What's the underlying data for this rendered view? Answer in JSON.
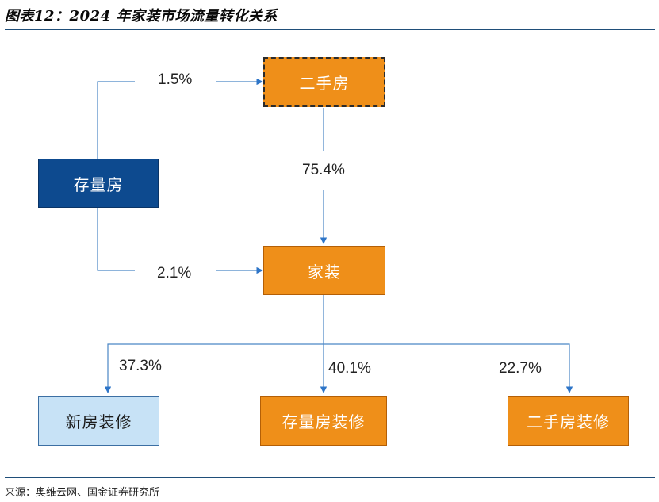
{
  "title": "图表12：2024 年家装市场流量转化关系",
  "source": "来源：奥维云网、国金证券研究所",
  "nodes": {
    "existing_home": "存量房",
    "second_hand": "二手房",
    "home_decoration": "家装",
    "new_home_renovation": "新房装修",
    "existing_home_renovation": "存量房装修",
    "second_hand_renovation": "二手房装修"
  },
  "edges": {
    "existing_to_second_hand": "1.5%",
    "existing_to_decoration": "2.1%",
    "second_hand_to_decoration": "75.4%",
    "decoration_to_new": "37.3%",
    "decoration_to_existing": "40.1%",
    "decoration_to_second_hand": "22.7%"
  },
  "colors": {
    "orange_fill": "#ef8f19",
    "dark_blue_fill": "#0d4a8f",
    "light_blue_fill": "#c7e2f6",
    "connector": "#4a86c5"
  }
}
